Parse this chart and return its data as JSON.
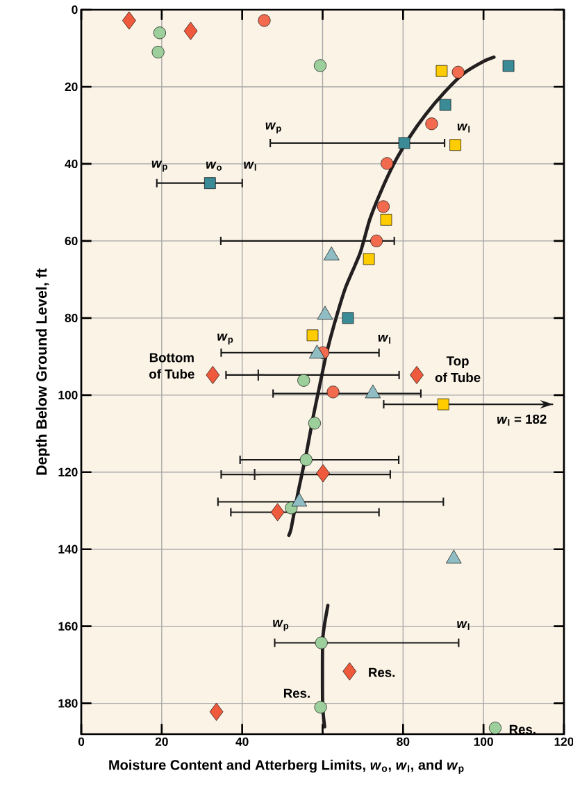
{
  "chart_data": {
    "type": "scatter",
    "xlabel": "Moisture Content and Atterberg Limits, *w*$_{o}$, *w*$_{l}$, and *w*$_{p}$",
    "ylabel": "Depth Below Ground Level, ft",
    "xlim": [
      0,
      120
    ],
    "ylim": [
      188,
      0
    ],
    "xticks": [
      0,
      20,
      40,
      {
        "value": 60,
        "label": null
      },
      80,
      100,
      120
    ],
    "yticks": [
      0,
      20,
      40,
      60,
      80,
      100,
      120,
      140,
      160,
      180
    ],
    "grid": true,
    "series": [
      {
        "type": "line",
        "color": "#231f20",
        "marker": "none",
        "x": [
          102.6,
          100.0,
          95.1,
          90.4,
          85.6,
          81.6,
          77.6,
          74.4,
          71.7,
          69.3,
          65.7,
          62.9,
          60.9,
          59.3,
          57.7,
          56.0,
          53.9,
          52.2,
          51.6
        ],
        "values": [
          12.3,
          13.4,
          16.5,
          21.3,
          27.2,
          33.1,
          40.2,
          47.4,
          54.5,
          63.2,
          72.1,
          81.6,
          89.5,
          97.4,
          105.4,
          114.9,
          125.2,
          134.5,
          136.4
        ]
      },
      {
        "type": "line",
        "color": "#231f20",
        "marker": "none",
        "x": [
          61.3,
          60.4,
          60.0,
          60.0,
          60.5
        ],
        "values": [
          154.6,
          160.0,
          164.3,
          180.0,
          186.1
        ]
      },
      {
        "color": "#f26b4e",
        "marker": "circle",
        "x": [
          45.5,
          93.7,
          87.1,
          76.0,
          75.1,
          73.4,
          60.1,
          62.6
        ],
        "values": [
          2.8,
          16.2,
          29.6,
          39.9,
          51.1,
          60.0,
          89.0,
          99.2
        ],
        "xerrors": [
          null,
          null,
          null,
          null,
          null,
          [
            34.5,
            78.0
          ],
          [
            34.6,
            74.2
          ],
          null
        ]
      },
      {
        "color": "#9dcf9c",
        "marker": "circle",
        "x": [
          19.5,
          19.1,
          59.4,
          55.3,
          58.0,
          55.9,
          52.2,
          59.7,
          59.5,
          102.9
        ],
        "values": [
          6.0,
          11.0,
          14.5,
          96.2,
          107.3,
          116.8,
          129.3,
          164.3,
          181.0,
          186.4
        ],
        "xerrors": [
          null,
          null,
          null,
          null,
          null,
          [
            39.3,
            79.1
          ],
          null,
          [
            47.9,
            94.0
          ],
          null,
          null
        ]
      },
      {
        "color": "#f05a3c",
        "marker": "diamond",
        "x": [
          11.9,
          27.2,
          32.7,
          83.4,
          60.1,
          48.8,
          66.7,
          33.6
        ],
        "values": [
          2.8,
          5.5,
          94.8,
          94.8,
          120.3,
          130.4,
          171.7,
          182.2
        ],
        "xerrors": [
          null,
          null,
          null,
          null,
          null,
          [
            37.0,
            74.2
          ],
          null,
          null
        ]
      },
      {
        "color": "#3b8b97",
        "marker": "square",
        "x": [
          106.2,
          90.5,
          80.3,
          32.0,
          66.3
        ],
        "values": [
          14.6,
          24.7,
          34.6,
          45.0,
          80.0
        ],
        "xerrors": [
          null,
          null,
          [
            46.8,
            90.5
          ],
          [
            18.6,
            40.2
          ],
          null
        ]
      },
      {
        "color": "#ffcc00",
        "marker": "square",
        "x": [
          89.6,
          93.0,
          75.8,
          71.5,
          57.5,
          90.0
        ],
        "values": [
          15.9,
          35.1,
          54.5,
          64.7,
          84.5,
          102.4
        ],
        "xerrors": [
          null,
          null,
          null,
          null,
          null,
          [
            75.0,
            117.3
          ]
        ]
      },
      {
        "color": "#8fbdc3",
        "marker": "triangle",
        "x": [
          62.2,
          60.6,
          58.6,
          72.5,
          54.2,
          92.6
        ],
        "values": [
          63.8,
          79.2,
          89.3,
          99.6,
          127.7,
          142.5
        ],
        "xerrors": [
          null,
          null,
          null,
          [
            47.5,
            84.6
          ],
          [
            33.8,
            90.2
          ],
          null
        ]
      },
      {
        "color": "#231f20",
        "marker": "cross",
        "x": [
          44.0,
          43.1
        ],
        "values": [
          94.8,
          120.6
        ],
        "xerrors": [
          [
            35.8,
            79.2
          ],
          [
            34.6,
            77.0
          ]
        ]
      }
    ],
    "annotations": [
      "*w*$_{p}$",
      "*w*$_{l}$",
      "*w*$_{p}$",
      "*w*$_{o}$",
      "*w*$_{l}$",
      "*w*$_{p}$",
      "*w*$_{l}$",
      "Bottom",
      "of Tube",
      "Top",
      "of Tube",
      "*w*$_{l}$ = 182",
      "*w*$_{p}$",
      "*w*$_{l}$",
      "Res.",
      "Res.",
      "Res."
    ]
  }
}
